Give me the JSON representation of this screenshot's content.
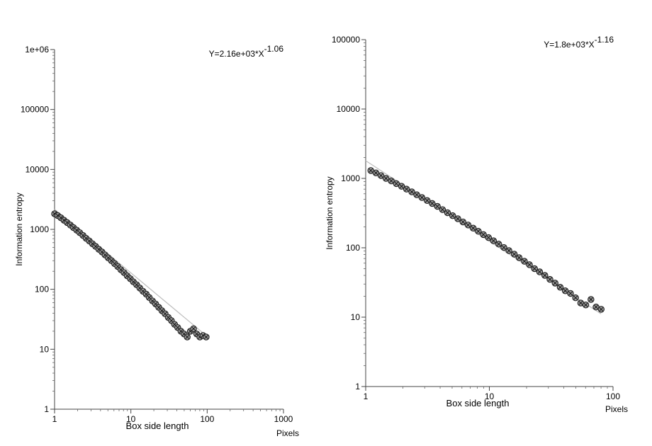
{
  "chart_data": [
    {
      "type": "scatter",
      "x_scale": "log",
      "y_scale": "log",
      "xlim": [
        1,
        1000
      ],
      "ylim": [
        1,
        1000000
      ],
      "x_ticks": [
        1,
        10,
        100,
        1000
      ],
      "x_tick_labels": [
        "1",
        "10",
        "100",
        "1000"
      ],
      "y_ticks": [
        1,
        10,
        100,
        1000,
        10000,
        100000,
        1000000
      ],
      "y_tick_labels": [
        "1",
        "10",
        "100",
        "1000",
        "10000",
        "100000",
        "1e+06"
      ],
      "xlabel": "Box side length",
      "x_unit": "Pixels",
      "ylabel": "Information entropy",
      "annotation": {
        "base": "Y=2.16e+03*X",
        "exponent": "-1.06"
      },
      "fit": {
        "a": 2160,
        "b": -1.06,
        "x_range": [
          1,
          100
        ]
      },
      "grid": false,
      "x": [
        1.0,
        1.1,
        1.21,
        1.33,
        1.46,
        1.61,
        1.77,
        1.95,
        2.14,
        2.36,
        2.59,
        2.85,
        3.14,
        3.45,
        3.8,
        4.18,
        4.59,
        5.05,
        5.56,
        6.12,
        6.73,
        7.4,
        8.14,
        8.95,
        9.85,
        10.8,
        11.9,
        13.1,
        14.4,
        15.9,
        17.4,
        19.2,
        21.1,
        23.2,
        25.5,
        28.1,
        30.9,
        34.0,
        37.4,
        41.1,
        45.3,
        49.8,
        54.8,
        60.2,
        66.3,
        72.9,
        80.2,
        88.2,
        97.0
      ],
      "y": [
        1820,
        1700,
        1560,
        1420,
        1300,
        1180,
        1070,
        970,
        880,
        790,
        710,
        640,
        575,
        520,
        465,
        420,
        375,
        335,
        300,
        268,
        240,
        212,
        190,
        168,
        150,
        133,
        119,
        105,
        93,
        83,
        73,
        64,
        57,
        50,
        44,
        39,
        34,
        30,
        26,
        23,
        20,
        18,
        16,
        20,
        22,
        18,
        16,
        17,
        16
      ]
    },
    {
      "type": "scatter",
      "x_scale": "log",
      "y_scale": "log",
      "xlim": [
        1,
        100
      ],
      "ylim": [
        1,
        100000
      ],
      "x_ticks": [
        1,
        10,
        100
      ],
      "x_tick_labels": [
        "1",
        "10",
        "100"
      ],
      "y_ticks": [
        1,
        10,
        100,
        1000,
        10000,
        100000
      ],
      "y_tick_labels": [
        "1",
        "10",
        "100",
        "1000",
        "10000",
        "100000"
      ],
      "xlabel": "Box side length",
      "x_unit": "Pixels",
      "ylabel": "Information entropy",
      "annotation": {
        "base": "Y=1.8e+03*X",
        "exponent": "-1.16"
      },
      "fit": {
        "a": 1800,
        "b": -1.16,
        "x_range": [
          1,
          80
        ]
      },
      "grid": false,
      "x": [
        1.1,
        1.21,
        1.33,
        1.46,
        1.61,
        1.77,
        1.95,
        2.14,
        2.36,
        2.59,
        2.85,
        3.14,
        3.45,
        3.8,
        4.18,
        4.59,
        5.05,
        5.56,
        6.12,
        6.73,
        7.4,
        8.14,
        8.95,
        9.85,
        10.8,
        11.9,
        13.1,
        14.4,
        15.9,
        17.4,
        19.2,
        21.1,
        23.2,
        25.5,
        28.1,
        30.9,
        34.0,
        37.4,
        41.1,
        45.3,
        49.8,
        54.8,
        60.2,
        66.3,
        72.9,
        80.2
      ],
      "y": [
        1300,
        1200,
        1100,
        1000,
        920,
        840,
        770,
        700,
        640,
        580,
        530,
        480,
        435,
        395,
        355,
        320,
        290,
        262,
        236,
        213,
        192,
        173,
        155,
        140,
        126,
        113,
        101,
        91,
        81,
        72,
        64,
        57,
        50,
        45,
        40,
        35,
        31,
        27,
        24,
        22,
        19,
        16,
        15,
        18,
        14,
        13
      ]
    }
  ]
}
